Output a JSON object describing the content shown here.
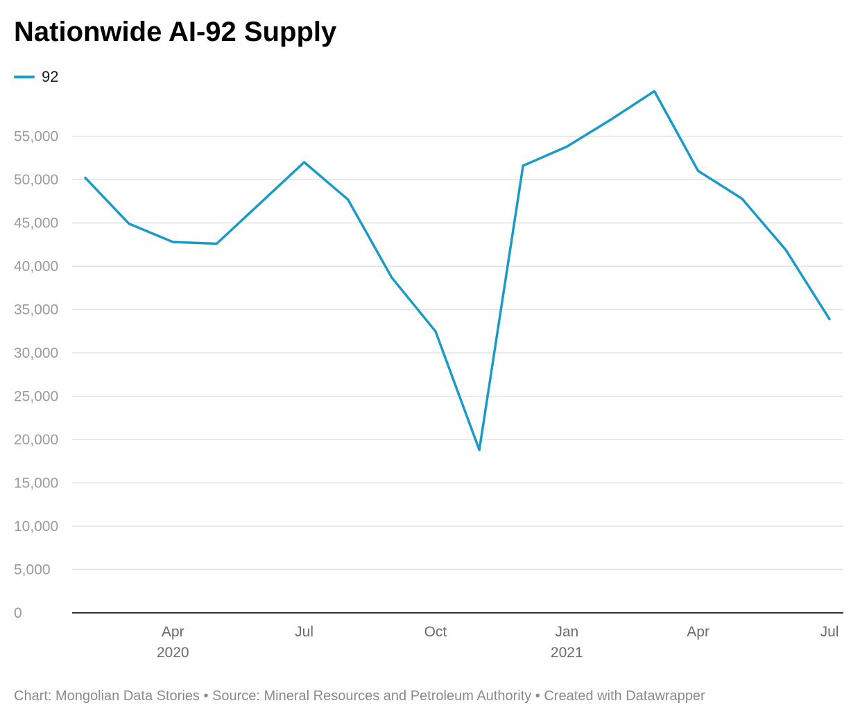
{
  "header": {
    "title": "Nationwide AI-92 Supply"
  },
  "legend": {
    "items": [
      {
        "label": "92",
        "color": "#1a9bc7"
      }
    ]
  },
  "footer": {
    "credit": "Chart: Mongolian Data Stories • Source: Mineral Resources and Petroleum Authority • Created with Datawrapper"
  },
  "chart_data": {
    "type": "line",
    "title": "Nationwide AI-92 Supply",
    "xlabel": "",
    "ylabel": "",
    "ylim": [
      0,
      60000
    ],
    "y_ticks": [
      0,
      5000,
      10000,
      15000,
      20000,
      25000,
      30000,
      35000,
      40000,
      45000,
      50000,
      55000
    ],
    "y_tick_labels": [
      "0",
      "5,000",
      "10,000",
      "15,000",
      "20,000",
      "25,000",
      "30,000",
      "35,000",
      "40,000",
      "45,000",
      "50,000",
      "55,000"
    ],
    "x_ticks": [
      {
        "date": "2020-04",
        "label": "Apr",
        "year_label": "2020"
      },
      {
        "date": "2020-07",
        "label": "Jul",
        "year_label": ""
      },
      {
        "date": "2020-10",
        "label": "Oct",
        "year_label": ""
      },
      {
        "date": "2021-01",
        "label": "Jan",
        "year_label": "2021"
      },
      {
        "date": "2021-04",
        "label": "Apr",
        "year_label": ""
      },
      {
        "date": "2021-07",
        "label": "Jul",
        "year_label": ""
      }
    ],
    "grid": true,
    "legend_position": "top-left",
    "series": [
      {
        "name": "92",
        "color": "#1a9bc7",
        "x": [
          "2020-02",
          "2020-03",
          "2020-04",
          "2020-05",
          "2020-06",
          "2020-07",
          "2020-08",
          "2020-09",
          "2020-10",
          "2020-11",
          "2020-12",
          "2021-01",
          "2021-02",
          "2021-03",
          "2021-04",
          "2021-05",
          "2021-06",
          "2021-07"
        ],
        "values": [
          50200,
          44900,
          42800,
          42600,
          47300,
          52000,
          47700,
          38700,
          32500,
          18800,
          51600,
          53800,
          56900,
          60200,
          51000,
          47800,
          41900,
          33900
        ]
      }
    ]
  }
}
